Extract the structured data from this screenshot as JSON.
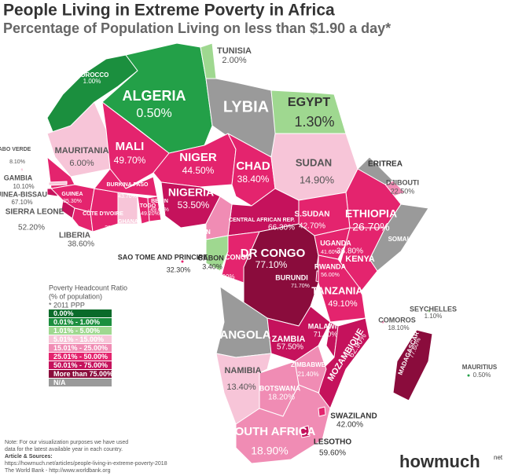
{
  "header": {
    "title": "People Living in Extreme Poverty in Africa",
    "subtitle": "Percentage of Population Living on less than $1.90 a day*"
  },
  "countries": [
    {
      "name": "MOROCCO",
      "value": "1.00%",
      "color": "#1b8f3e"
    },
    {
      "name": "ALGERIA",
      "value": "0.50%",
      "color": "#23a048"
    },
    {
      "name": "TUNISIA",
      "value": "2.00%",
      "color": "#9fd890"
    },
    {
      "name": "LYBIA",
      "color": "#9a9a9a"
    },
    {
      "name": "EGYPT",
      "value": "1.30%",
      "color": "#9fd890"
    },
    {
      "name": "MAURITANIA",
      "value": "6.00%",
      "color": "#f7c5d8"
    },
    {
      "name": "MALI",
      "value": "49.70%",
      "color": "#e4246e"
    },
    {
      "name": "NIGER",
      "value": "44.50%",
      "color": "#e4246e"
    },
    {
      "name": "CHAD",
      "value": "38.40%",
      "color": "#e4246e"
    },
    {
      "name": "SUDAN",
      "value": "14.90%",
      "color": "#f7c5d8"
    },
    {
      "name": "ERITREA",
      "color": "#9a9a9a"
    },
    {
      "name": "DJIBOUTI",
      "value": "22.50%",
      "color": "#f08cb4"
    },
    {
      "name": "ETHIOPIA",
      "value": "26.70%",
      "color": "#e4246e"
    },
    {
      "name": "SOMALIA",
      "color": "#9a9a9a"
    },
    {
      "name": "S.SUDAN",
      "value": "42.70%",
      "color": "#e4246e"
    },
    {
      "name": "CENTRAL AFRICAN REP.",
      "value": "66.30%",
      "color": "#c5125c"
    },
    {
      "name": "NIGERIA",
      "value": "53.50%",
      "color": "#c5125c"
    },
    {
      "name": "CAMEROON",
      "value": "23.80%",
      "color": "#f08cb4"
    },
    {
      "name": "DR CONGO",
      "value": "77.10%",
      "color": "#8a0c3c"
    },
    {
      "name": "CONGO",
      "value": "37.00%",
      "color": "#e4246e"
    },
    {
      "name": "GABON",
      "value": "3.40%",
      "color": "#9fd890"
    },
    {
      "name": "SAO TOME AND PRINCIPE",
      "value": "32.30%",
      "color": "#e4246e"
    },
    {
      "name": "UGANDA",
      "value": "41.60%",
      "color": "#e4246e"
    },
    {
      "name": "KENYA",
      "value": "36.80%",
      "color": "#e4246e"
    },
    {
      "name": "RWANDA",
      "value": "56.00%",
      "color": "#c5125c"
    },
    {
      "name": "BURUNDI",
      "value": "71.70%",
      "color": "#c5125c"
    },
    {
      "name": "TANZANIA",
      "value": "49.10%",
      "color": "#e4246e"
    },
    {
      "name": "SEYCHELLES",
      "value": "1.10%",
      "color": "#9fd890"
    },
    {
      "name": "COMOROS",
      "value": "18.10%",
      "color": "#f08cb4"
    },
    {
      "name": "ANGOLA",
      "color": "#9a9a9a"
    },
    {
      "name": "ZAMBIA",
      "value": "57.50%",
      "color": "#c5125c"
    },
    {
      "name": "MALAWI",
      "value": "71.40%",
      "color": "#c5125c"
    },
    {
      "name": "MOZAMBIQUE",
      "value": "62.90%",
      "color": "#c5125c"
    },
    {
      "name": "MADAGASCAR",
      "value": "77.60%",
      "color": "#8a0c3c"
    },
    {
      "name": "MAURITIUS",
      "value": "0.50%",
      "color": "#23a048"
    },
    {
      "name": "ZIMBABWE",
      "value": "21.40%",
      "color": "#f08cb4"
    },
    {
      "name": "NAMIBIA",
      "value": "13.40%",
      "color": "#f7c5d8"
    },
    {
      "name": "BOTSWANA",
      "value": "18.20%",
      "color": "#f08cb4"
    },
    {
      "name": "SOUTH AFRICA",
      "value": "18.90%",
      "color": "#f08cb4"
    },
    {
      "name": "SWAZILAND",
      "value": "42.00%",
      "color": "#e4246e"
    },
    {
      "name": "LESOTHO",
      "value": "59.60%",
      "color": "#c5125c"
    },
    {
      "name": "SENEGAL",
      "value": "38.00%",
      "color": "#e4246e"
    },
    {
      "name": "GAMBIA",
      "value": "10.10%",
      "color": "#f7c5d8"
    },
    {
      "name": "GUINEA-BISSAU",
      "value": "67.10%",
      "color": "#c5125c"
    },
    {
      "name": "GUINEA",
      "value": "35.30%",
      "color": "#e4246e"
    },
    {
      "name": "SIERRA LEONE",
      "value": "52.20%",
      "color": "#c5125c"
    },
    {
      "name": "LIBERIA",
      "value": "38.60%",
      "color": "#e4246e"
    },
    {
      "name": "CÔTE D'IVOIRE",
      "value": "28.20%",
      "color": "#e4246e"
    },
    {
      "name": "BURKINA FASO",
      "value": "43.70%",
      "color": "#e4246e"
    },
    {
      "name": "GHANA",
      "value": "12.00%",
      "color": "#f7c5d8"
    },
    {
      "name": "TOGO",
      "value": "49.20%",
      "color": "#e4246e"
    },
    {
      "name": "BENIN",
      "value": "49.60%",
      "color": "#e4246e"
    },
    {
      "name": "CABO VERDE",
      "value": "8.10%",
      "color": "#f7c5d8"
    }
  ],
  "legend": {
    "title": "Poverty Headcount Ratio",
    "subtitle": "(% of population)",
    "note": "* 2011 PPP",
    "items": [
      {
        "label": "0.00%",
        "color": "#0a6b2a"
      },
      {
        "label": "0.01% - 1.00%",
        "color": "#1b8f3e"
      },
      {
        "label": "1.01% - 5.00%",
        "color": "#9fd890"
      },
      {
        "label": "5.01% - 15.00%",
        "color": "#f7c5d8"
      },
      {
        "label": "15.01% - 25.00%",
        "color": "#f08cb4"
      },
      {
        "label": "25.01% - 50.00%",
        "color": "#e4246e"
      },
      {
        "label": "50.01% - 75.00%",
        "color": "#c5125c"
      },
      {
        "label": "More than 75.00%",
        "color": "#8a0c3c"
      },
      {
        "label": "N/A",
        "color": "#9a9a9a"
      }
    ]
  },
  "footer": {
    "note": [
      "Note: For our visualization purposes we have used",
      "data for the latest available year in each country."
    ],
    "sources_title": "Article & Sources:",
    "sources": [
      "https://howmuch.net/articles/people-living-in-extreme-poverty-2018",
      "The World Bank - http://www.worldbank.org"
    ],
    "logo": "howmuch",
    "logo_suffix": "net"
  }
}
